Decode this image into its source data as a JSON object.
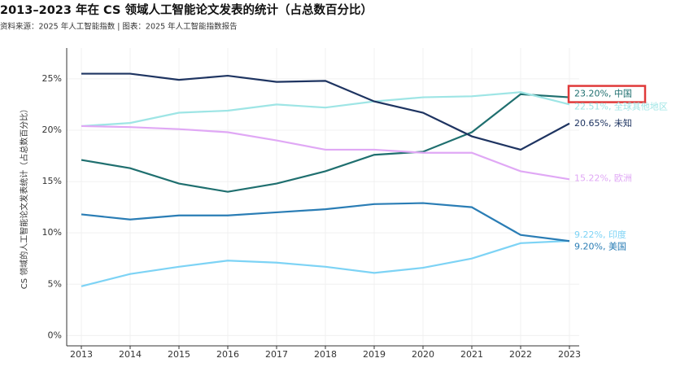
{
  "chart_data": {
    "type": "line",
    "title": "2013–2023 年在 CS 领域人工智能论文发表的统计（占总数百分比）",
    "subtitle": "资料来源：2025 年人工智能指数 | 图表：2025 年人工智能指数报告",
    "y_label": "CS 领域的人工智能论文发表统计（占总数百分比）",
    "x": [
      2013,
      2014,
      2015,
      2016,
      2017,
      2018,
      2019,
      2020,
      2021,
      2022,
      2023
    ],
    "xlim": [
      2012.7,
      2023.2
    ],
    "xticks": [
      2013,
      2014,
      2015,
      2016,
      2017,
      2018,
      2019,
      2020,
      2021,
      2022,
      2023
    ],
    "ylim": [
      -1,
      28
    ],
    "yticks": [
      {
        "value": 0,
        "label": "0%"
      },
      {
        "value": 5,
        "label": "5%"
      },
      {
        "value": 10,
        "label": "10%"
      },
      {
        "value": 15,
        "label": "15%"
      },
      {
        "value": 20,
        "label": "20%"
      },
      {
        "value": 25,
        "label": "25%"
      }
    ],
    "grid": true,
    "series": [
      {
        "color": "#1f6f6f",
        "highlight": true,
        "values": [
          17.1,
          16.3,
          14.8,
          14.0,
          14.8,
          16.0,
          17.6,
          17.9,
          19.8,
          23.5,
          23.2
        ],
        "value_labels": [
          null,
          null,
          null,
          null,
          null,
          null,
          null,
          null,
          null,
          null,
          "23.20%, 中国"
        ]
      },
      {
        "color": "#9ee5e5",
        "values": [
          20.4,
          20.7,
          21.7,
          21.9,
          22.5,
          22.2,
          22.8,
          23.2,
          23.3,
          23.7,
          22.51
        ],
        "value_labels": [
          null,
          null,
          null,
          null,
          null,
          null,
          null,
          null,
          null,
          null,
          "22.51%, 全球其他地区"
        ]
      },
      {
        "color": "#1e3461",
        "values": [
          25.5,
          25.5,
          24.9,
          25.3,
          24.7,
          24.8,
          22.8,
          21.7,
          19.4,
          18.1,
          20.65
        ],
        "value_labels": [
          null,
          null,
          null,
          null,
          null,
          null,
          null,
          null,
          null,
          null,
          "20.65%, 未知"
        ]
      },
      {
        "color": "#e0a8f5",
        "values": [
          20.4,
          20.3,
          20.1,
          19.8,
          19.0,
          18.1,
          18.1,
          17.8,
          17.8,
          16.0,
          15.22
        ],
        "value_labels": [
          null,
          null,
          null,
          null,
          null,
          null,
          null,
          null,
          null,
          null,
          "15.22%, 欧洲"
        ]
      },
      {
        "color": "#7dd3f5",
        "values": [
          4.8,
          6.0,
          6.7,
          7.3,
          7.1,
          6.7,
          6.1,
          6.6,
          7.5,
          9.0,
          9.22
        ],
        "value_labels": [
          null,
          null,
          null,
          null,
          null,
          null,
          null,
          null,
          null,
          null,
          "9.22%, 印度"
        ]
      },
      {
        "color": "#2a7db5",
        "values": [
          11.8,
          11.3,
          11.7,
          11.7,
          12.0,
          12.3,
          12.8,
          12.9,
          12.5,
          9.8,
          9.2
        ],
        "value_labels": [
          null,
          null,
          null,
          null,
          null,
          null,
          null,
          null,
          null,
          null,
          "9.20%, 美国"
        ]
      }
    ]
  }
}
